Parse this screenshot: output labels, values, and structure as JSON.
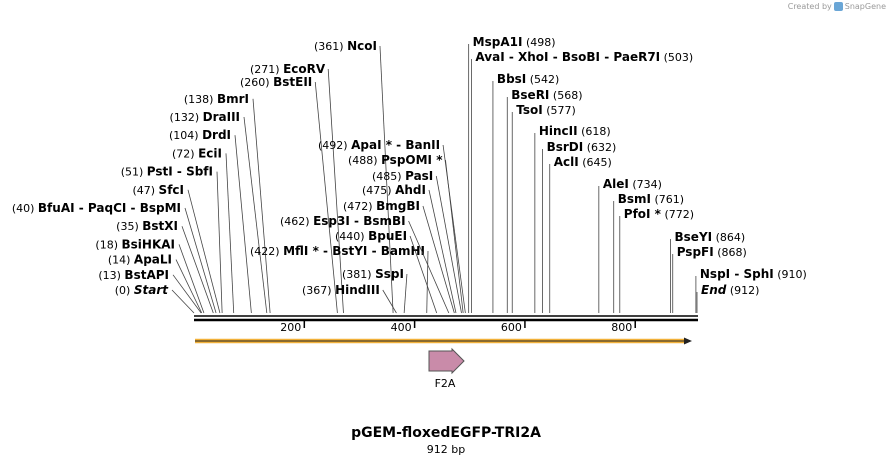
{
  "credit": {
    "prefix": "Created by",
    "brand": "SnapGene"
  },
  "sequence": {
    "name": "pGEM-floxedEGFP-TRI2A",
    "length_label": "912 bp",
    "length": 912
  },
  "ruler": {
    "ticks": [
      "200",
      "400",
      "600",
      "800"
    ]
  },
  "feature": {
    "name": "F2A",
    "color": "#c98ba9"
  },
  "orf": {
    "color": "#f2b13a"
  },
  "left_sites": [
    {
      "pos": "(0)",
      "names": [
        "Start"
      ],
      "italic": true
    },
    {
      "pos": "(13)",
      "names": [
        "BstAPI"
      ]
    },
    {
      "pos": "(14)",
      "names": [
        "ApaLI"
      ]
    },
    {
      "pos": "(18)",
      "names": [
        "BsiHKAI"
      ]
    },
    {
      "pos": "(35)",
      "names": [
        "BstXI"
      ]
    },
    {
      "pos": "(40)",
      "names": [
        "BfuAI",
        "PaqCI",
        "BspMI"
      ]
    },
    {
      "pos": "(47)",
      "names": [
        "SfcI"
      ]
    },
    {
      "pos": "(51)",
      "names": [
        "PstI",
        "SbfI"
      ]
    },
    {
      "pos": "(72)",
      "names": [
        "EciI"
      ]
    },
    {
      "pos": "(104)",
      "names": [
        "DrdI"
      ]
    },
    {
      "pos": "(132)",
      "names": [
        "DraIII"
      ]
    },
    {
      "pos": "(138)",
      "names": [
        "BmrI"
      ]
    }
  ],
  "mid_sites": [
    {
      "pos": "(260)",
      "names": [
        "BstEII"
      ]
    },
    {
      "pos": "(271)",
      "names": [
        "EcoRV"
      ]
    },
    {
      "pos": "(361)",
      "names": [
        "NcoI"
      ]
    },
    {
      "pos": "(367)",
      "names": [
        "HindIII"
      ]
    },
    {
      "pos": "(381)",
      "names": [
        "SspI"
      ]
    },
    {
      "pos": "(422)",
      "names": [
        "MflI *",
        "BstYI",
        "BamHI"
      ]
    },
    {
      "pos": "(440)",
      "names": [
        "BpuEI"
      ]
    },
    {
      "pos": "(462)",
      "names": [
        "Esp3I",
        "BsmBI"
      ]
    },
    {
      "pos": "(472)",
      "names": [
        "BmgBI"
      ]
    },
    {
      "pos": "(475)",
      "names": [
        "AhdI"
      ]
    },
    {
      "pos": "(485)",
      "names": [
        "PasI"
      ]
    },
    {
      "pos": "(488)",
      "names": [
        "PspOMI *"
      ]
    },
    {
      "pos": "(492)",
      "names": [
        "ApaI *",
        "BanII"
      ]
    }
  ],
  "right_sites": [
    {
      "pos": "(498)",
      "names": [
        "MspA1I"
      ]
    },
    {
      "pos": "(503)",
      "names": [
        "AvaI",
        "XhoI",
        "BsoBI",
        "PaeR7I"
      ]
    },
    {
      "pos": "(542)",
      "names": [
        "BbsI"
      ]
    },
    {
      "pos": "(568)",
      "names": [
        "BseRI"
      ]
    },
    {
      "pos": "(577)",
      "names": [
        "TsoI"
      ]
    },
    {
      "pos": "(618)",
      "names": [
        "HincII"
      ]
    },
    {
      "pos": "(632)",
      "names": [
        "BsrDI"
      ]
    },
    {
      "pos": "(645)",
      "names": [
        "AclI"
      ]
    },
    {
      "pos": "(734)",
      "names": [
        "AleI"
      ]
    },
    {
      "pos": "(761)",
      "names": [
        "BsmI"
      ]
    },
    {
      "pos": "(772)",
      "names": [
        "PfoI *"
      ]
    },
    {
      "pos": "(864)",
      "names": [
        "BseYI"
      ]
    },
    {
      "pos": "(868)",
      "names": [
        "PspFI"
      ]
    },
    {
      "pos": "(910)",
      "names": [
        "NspI",
        "SphI"
      ]
    },
    {
      "pos": "(912)",
      "names": [
        "End"
      ],
      "italic": true
    }
  ]
}
